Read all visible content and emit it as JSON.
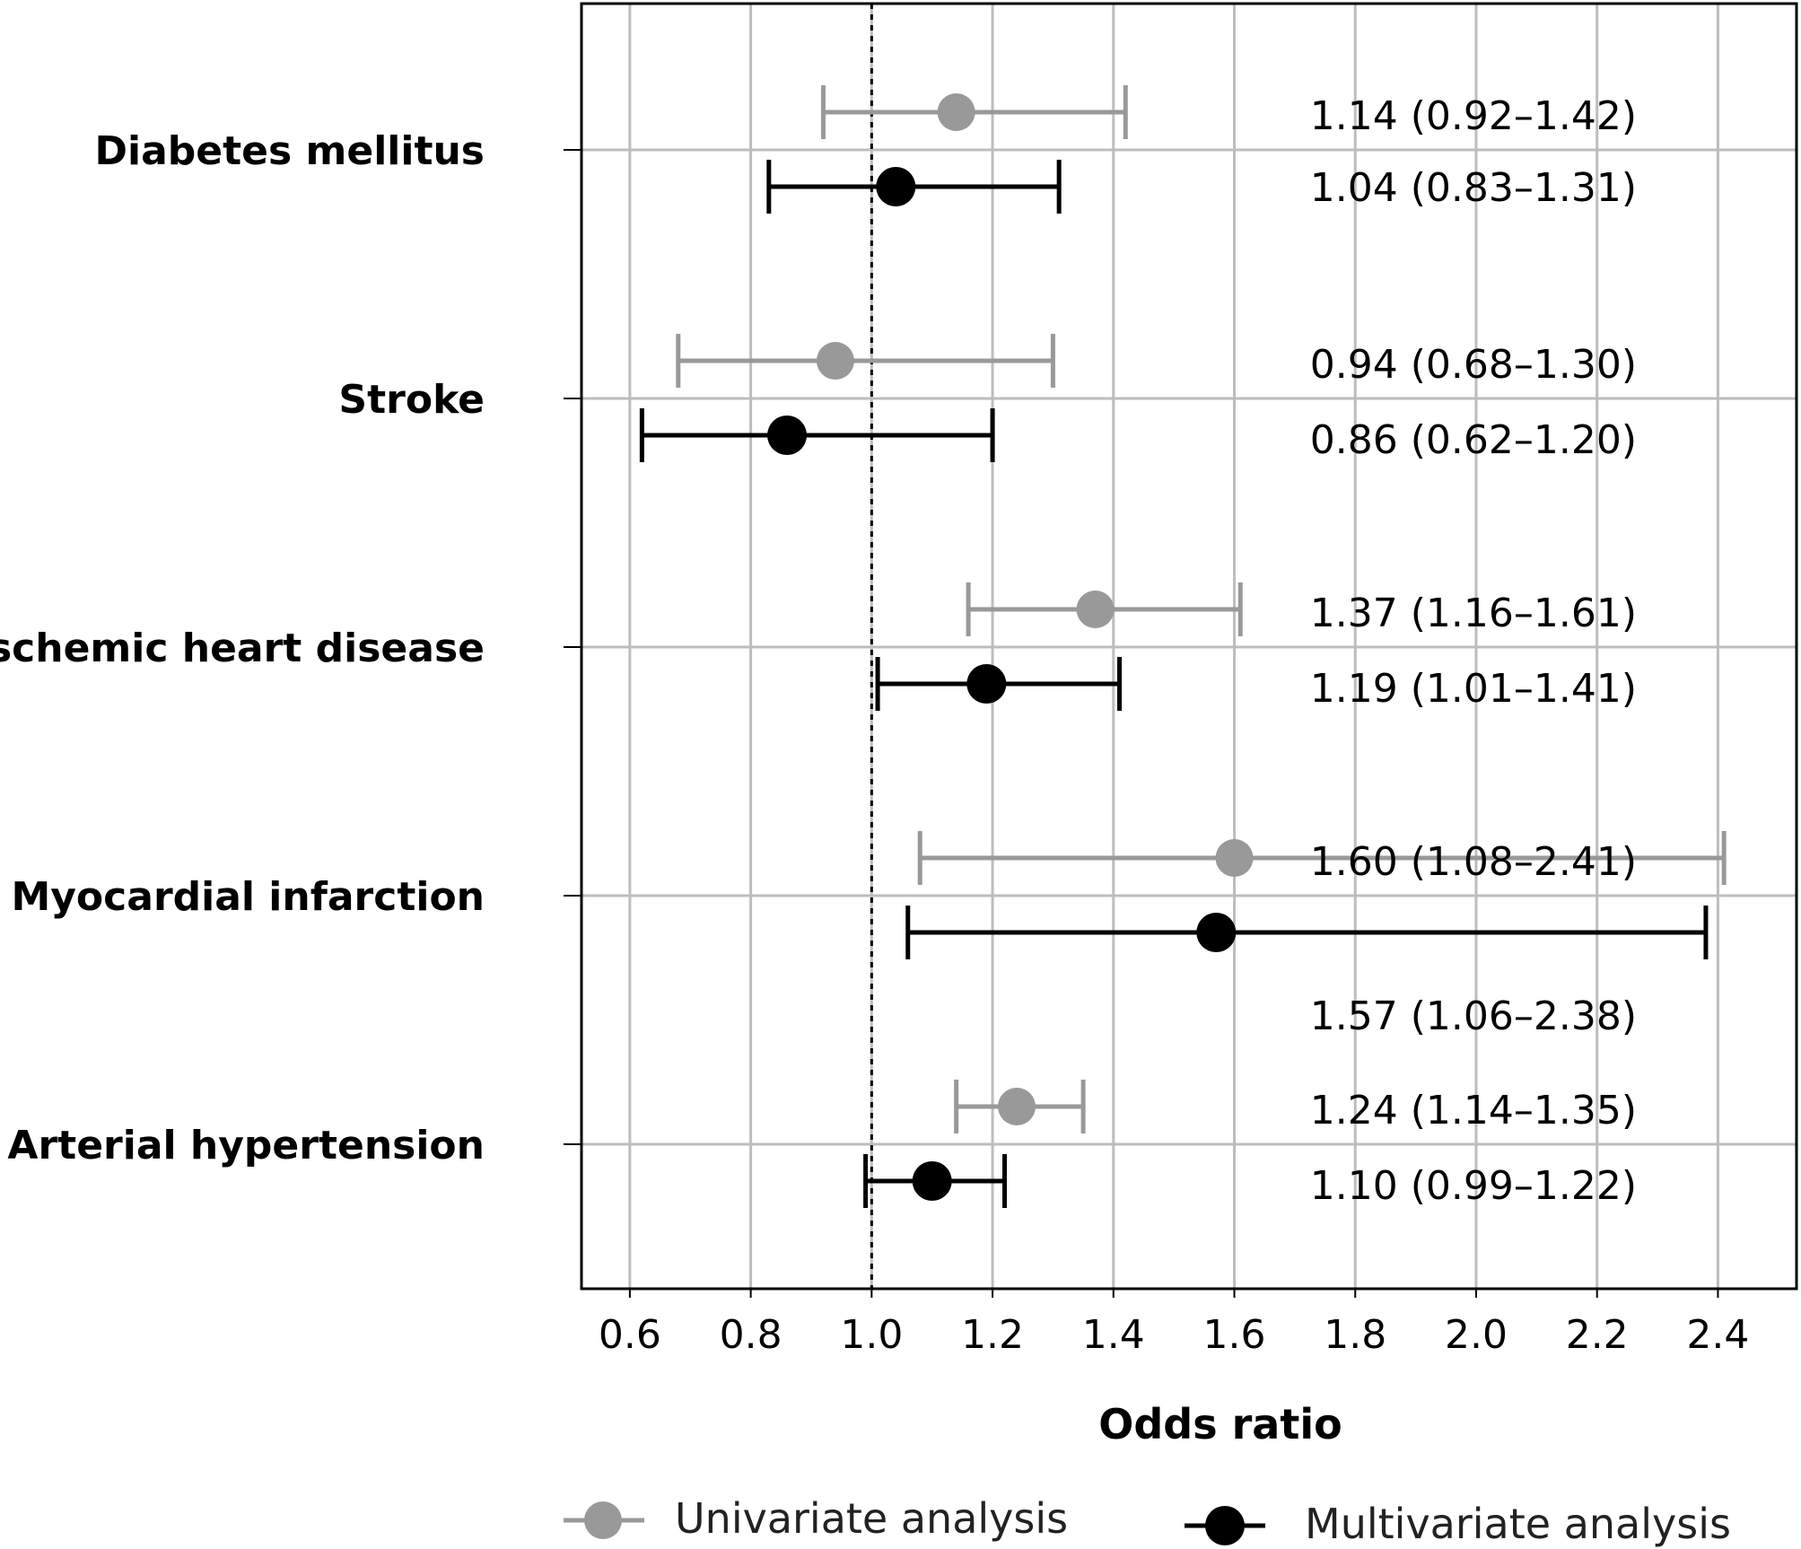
{
  "chart_data": {
    "type": "forest",
    "xlabel": "Odds ratio",
    "xlim": [
      0.52,
      2.53
    ],
    "xticks": [
      0.6,
      0.8,
      1.0,
      1.2,
      1.4,
      1.6,
      1.8,
      2.0,
      2.2,
      2.4
    ],
    "xtick_labels": [
      "0.6",
      "0.8",
      "1.0",
      "1.2",
      "1.4",
      "1.6",
      "1.8",
      "2.0",
      "2.2",
      "2.4"
    ],
    "reference_line": 1.0,
    "grid": true,
    "legend_position": "bottom",
    "categories": [
      "Diabetes mellitus",
      "Stroke",
      "Ischemic heart disease",
      "Myocardial infarction",
      "Arterial hypertension"
    ],
    "series": [
      {
        "name": "Univariate analysis",
        "color": "#999999",
        "estimates": [
          1.14,
          0.94,
          1.37,
          1.6,
          1.24
        ],
        "lower": [
          0.92,
          0.68,
          1.16,
          1.08,
          1.14
        ],
        "upper": [
          1.42,
          1.3,
          1.61,
          2.41,
          1.35
        ],
        "labels": [
          "1.14 (0.92–1.42)",
          "0.94 (0.68–1.30)",
          "1.37 (1.16–1.61)",
          "1.60 (1.08–2.41)",
          "1.24 (1.14–1.35)"
        ]
      },
      {
        "name": "Multivariate analysis",
        "color": "#000000",
        "estimates": [
          1.04,
          0.86,
          1.19,
          1.57,
          1.1
        ],
        "lower": [
          0.83,
          0.62,
          1.01,
          1.06,
          0.99
        ],
        "upper": [
          1.31,
          1.2,
          1.41,
          2.38,
          1.22
        ],
        "labels": [
          "1.04 (0.83–1.31)",
          "0.86 (0.62–1.20)",
          "1.19 (1.01–1.41)",
          "1.57 (1.06–2.38)",
          "1.10 (0.99–1.22)"
        ]
      }
    ]
  }
}
